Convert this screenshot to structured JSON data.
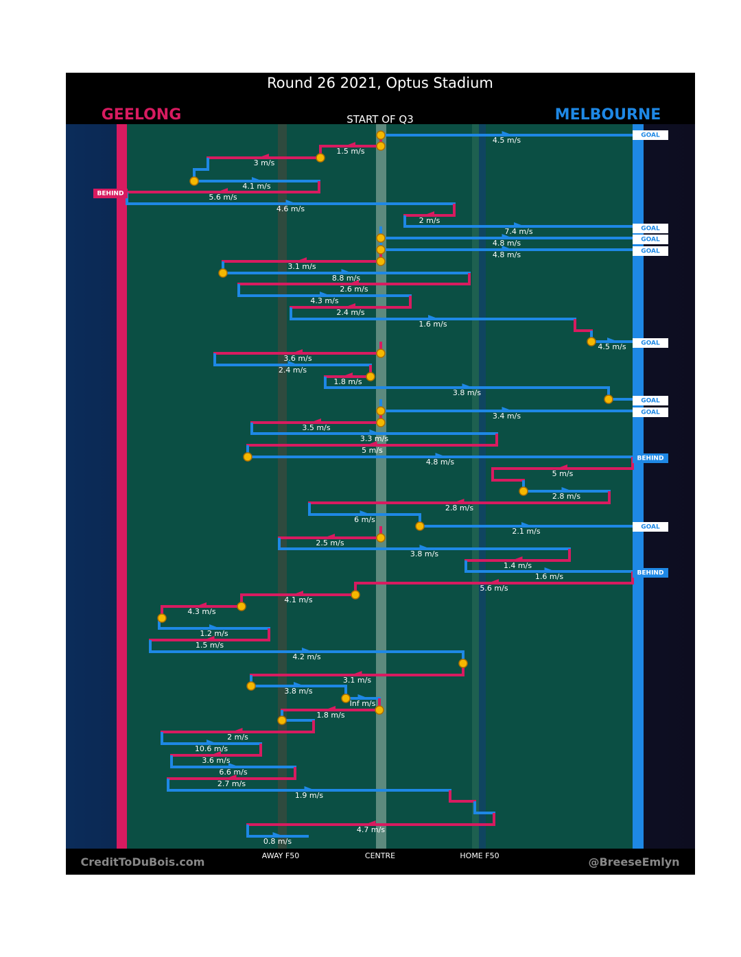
{
  "title": "Round 26 2021, Optus Stadium",
  "teams": {
    "left": "GEELONG",
    "right": "MELBOURNE"
  },
  "start_label": "START OF Q3",
  "field_labels": [
    "AWAY F50",
    "CENTRE",
    "HOME F50"
  ],
  "credits": {
    "left": "CreditToDuBois.com",
    "right": "@BreeseEmlyn"
  },
  "colors": {
    "geelong": "#d81b60",
    "melbourne": "#1e88e5"
  },
  "outcomes": [
    "GOAL",
    "BEHIND",
    "GOAL",
    "GOAL",
    "GOAL",
    "GOAL",
    "GOAL",
    "GOAL",
    "BEHIND",
    "GOAL",
    "BEHIND"
  ],
  "segments": [
    {
      "label": "4.5 m/s",
      "color": "#1e88e5"
    },
    {
      "label": "1.5 m/s",
      "color": "#d81b60"
    },
    {
      "label": "3 m/s",
      "color": "#d81b60"
    },
    {
      "label": "4.1 m/s",
      "color": "#1e88e5"
    },
    {
      "label": "5.6 m/s",
      "color": "#d81b60"
    },
    {
      "label": "4.6 m/s",
      "color": "#1e88e5"
    },
    {
      "label": "2 m/s",
      "color": "#d81b60"
    },
    {
      "label": "7.4 m/s",
      "color": "#1e88e5"
    },
    {
      "label": "4.8 m/s",
      "color": "#1e88e5"
    },
    {
      "label": "4.8 m/s",
      "color": "#1e88e5"
    },
    {
      "label": "3.1 m/s",
      "color": "#d81b60"
    },
    {
      "label": "8.8 m/s",
      "color": "#1e88e5"
    },
    {
      "label": "2.6 m/s",
      "color": "#d81b60"
    },
    {
      "label": "4.3 m/s",
      "color": "#1e88e5"
    },
    {
      "label": "2.4 m/s",
      "color": "#d81b60"
    },
    {
      "label": "1.6 m/s",
      "color": "#1e88e5"
    },
    {
      "label": "4.5 m/s",
      "color": "#1e88e5"
    },
    {
      "label": "3.6 m/s",
      "color": "#d81b60"
    },
    {
      "label": "2.4 m/s",
      "color": "#1e88e5"
    },
    {
      "label": "1.8 m/s",
      "color": "#d81b60"
    },
    {
      "label": "3.8 m/s",
      "color": "#1e88e5"
    },
    {
      "label": "3.4 m/s",
      "color": "#1e88e5"
    },
    {
      "label": "3.5 m/s",
      "color": "#d81b60"
    },
    {
      "label": "3.3 m/s",
      "color": "#1e88e5"
    },
    {
      "label": "5 m/s",
      "color": "#d81b60"
    },
    {
      "label": "4.8 m/s",
      "color": "#1e88e5"
    },
    {
      "label": "5 m/s",
      "color": "#d81b60"
    },
    {
      "label": "2.8 m/s",
      "color": "#1e88e5"
    },
    {
      "label": "2.8 m/s",
      "color": "#d81b60"
    },
    {
      "label": "6 m/s",
      "color": "#1e88e5"
    },
    {
      "label": "2.1 m/s",
      "color": "#1e88e5"
    },
    {
      "label": "2.5 m/s",
      "color": "#d81b60"
    },
    {
      "label": "3.8 m/s",
      "color": "#1e88e5"
    },
    {
      "label": "1.4 m/s",
      "color": "#d81b60"
    },
    {
      "label": "1.6 m/s",
      "color": "#1e88e5"
    },
    {
      "label": "5.6 m/s",
      "color": "#d81b60"
    },
    {
      "label": "4.1 m/s",
      "color": "#d81b60"
    },
    {
      "label": "4.3 m/s",
      "color": "#d81b60"
    },
    {
      "label": "1.2 m/s",
      "color": "#1e88e5"
    },
    {
      "label": "1.5 m/s",
      "color": "#d81b60"
    },
    {
      "label": "4.2 m/s",
      "color": "#1e88e5"
    },
    {
      "label": "3.1 m/s",
      "color": "#d81b60"
    },
    {
      "label": "3.8 m/s",
      "color": "#1e88e5"
    },
    {
      "label": "Inf m/s",
      "color": "#1e88e5"
    },
    {
      "label": "1.8 m/s",
      "color": "#d81b60"
    },
    {
      "label": "2 m/s",
      "color": "#d81b60"
    },
    {
      "label": "10.6 m/s",
      "color": "#1e88e5"
    },
    {
      "label": "3.6 m/s",
      "color": "#d81b60"
    },
    {
      "label": "6.6 m/s",
      "color": "#1e88e5"
    },
    {
      "label": "2.7 m/s",
      "color": "#d81b60"
    },
    {
      "label": "1.9 m/s",
      "color": "#1e88e5"
    },
    {
      "label": "4.7 m/s",
      "color": "#d81b60"
    },
    {
      "label": "0.8 m/s",
      "color": "#1e88e5"
    }
  ]
}
